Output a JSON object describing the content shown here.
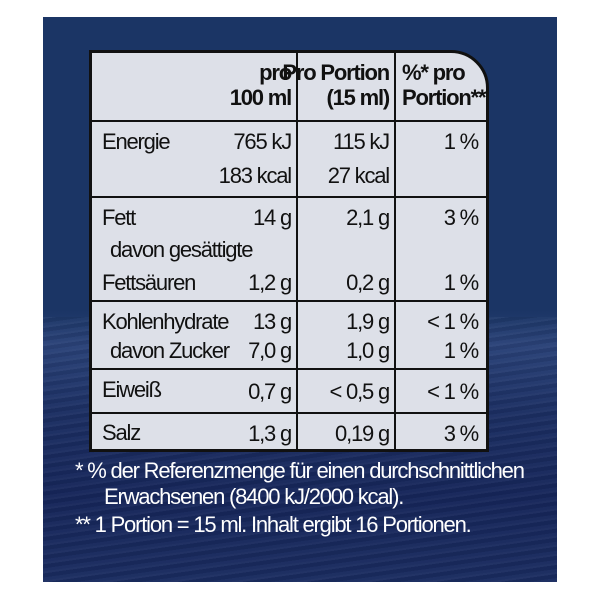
{
  "header": {
    "col1_line1": "pro",
    "col1_line2": "100 ml",
    "col2_line1": "Pro Portion",
    "col2_line2": "(15 ml)",
    "col3_line1": "%* pro",
    "col3_line2": "Portion**"
  },
  "rows": {
    "energie": {
      "label": "Energie",
      "v100_kj": "765 kJ",
      "v100_kcal": "183 kcal",
      "portion_kj": "115 kJ",
      "portion_kcal": "27 kcal",
      "pct": "1 %"
    },
    "fett": {
      "label": "Fett",
      "v100": "14 g",
      "portion": "2,1 g",
      "pct": "3 %"
    },
    "gesaettigt": {
      "label_line1": "davon gesättigte",
      "label_line2": "Fettsäuren",
      "v100": "1,2 g",
      "portion": "0,2 g",
      "pct": "1 %"
    },
    "kohlenhydrate": {
      "label": "Kohlenhydrate",
      "v100": "13 g",
      "portion": "1,9 g",
      "pct": "< 1 %"
    },
    "zucker": {
      "label": "davon Zucker",
      "v100": "7,0 g",
      "portion": "1,0 g",
      "pct": "1 %"
    },
    "eiweiss": {
      "label": "Eiweiß",
      "v100": "0,7 g",
      "portion": "< 0,5 g",
      "pct": "< 1 %"
    },
    "salz": {
      "label": "Salz",
      "v100": "1,3 g",
      "portion": "0,19 g",
      "pct": "3 %"
    }
  },
  "footnotes": {
    "f1_line1": "* % der Referenzmenge für einen durchschnittlichen",
    "f1_line2": "Erwachsenen (8400 kJ/2000 kcal).",
    "f2": "** 1 Portion = 15 ml. Inhalt ergibt 16 Portionen."
  },
  "colors": {
    "background": "#1b3565",
    "table": "#dde0e8",
    "text": "#111111"
  }
}
